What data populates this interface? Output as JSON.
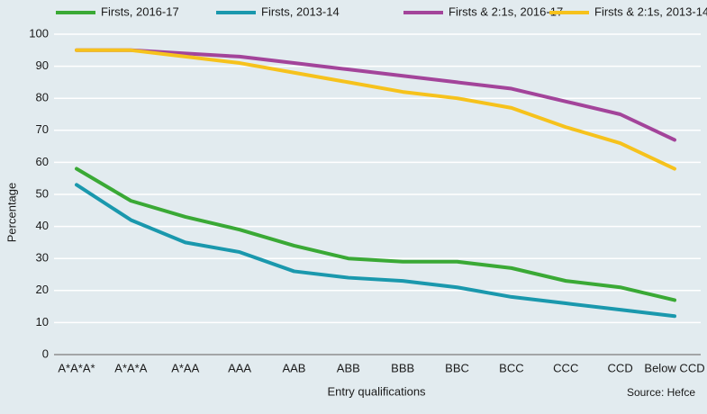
{
  "chart_data": {
    "type": "line",
    "x_label": "Entry qualifications",
    "y_label": "Percentage",
    "source": "Source: Hefce",
    "categories": [
      "A*A*A*",
      "A*A*A",
      "A*AA",
      "AAA",
      "AAB",
      "ABB",
      "BBB",
      "BBC",
      "BCC",
      "CCC",
      "CCD",
      "Below CCD"
    ],
    "series": [
      {
        "name": "Firsts, 2016-17",
        "color": "#3aa935",
        "values": [
          58,
          48,
          43,
          39,
          34,
          30,
          29,
          29,
          27,
          23,
          21,
          17
        ]
      },
      {
        "name": "Firsts, 2013-14",
        "color": "#1a98ad",
        "values": [
          53,
          42,
          35,
          32,
          26,
          24,
          23,
          21,
          18,
          16,
          14,
          12
        ]
      },
      {
        "name": "Firsts & 2:1s, 2016-17",
        "color": "#a3449a",
        "values": [
          95,
          95,
          94,
          93,
          91,
          89,
          87,
          85,
          83,
          79,
          75,
          67
        ]
      },
      {
        "name": "Firsts & 2:1s, 2013-14",
        "color": "#f6c21c",
        "values": [
          95,
          95,
          93,
          91,
          88,
          85,
          82,
          80,
          77,
          71,
          66,
          58
        ]
      }
    ],
    "ylim": [
      0,
      100
    ],
    "yticks": [
      0,
      10,
      20,
      30,
      40,
      50,
      60,
      70,
      80,
      90,
      100
    ],
    "grid": true
  }
}
